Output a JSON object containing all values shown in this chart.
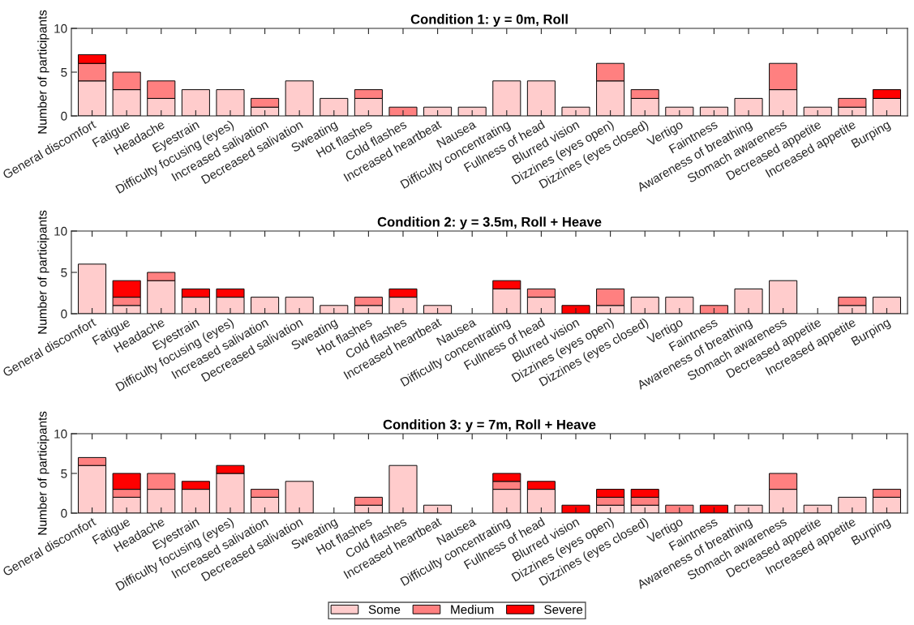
{
  "chart_data": [
    {
      "type": "bar",
      "title": "Condition 1: y = 0m, Roll",
      "ylabel": "Number of participants",
      "stacked": true,
      "legend": "bottom",
      "grid": false,
      "ylim": [
        0,
        10
      ],
      "yticks": [
        0,
        5,
        10
      ],
      "categories": [
        "General discomfort",
        "Fatigue",
        "Headache",
        "Eyestrain",
        "Difficulty focusing (eyes)",
        "Increased salivation",
        "Decreased salivation",
        "Sweating",
        "Hot flashes",
        "Cold flashes",
        "Increased heartbeat",
        "Nausea",
        "Difficulty concentrating",
        "Fullness of head",
        "Blurred vision",
        "Dizzines (eyes open)",
        "Dizzines (eyes closed)",
        "Vertigo",
        "Faintness",
        "Awareness of breathing",
        "Stomach awareness",
        "Decreased appetite",
        "Increased appetite",
        "Burping"
      ],
      "series": [
        {
          "name": "Some",
          "color": "#ffcccc",
          "values": [
            4,
            3,
            2,
            3,
            3,
            1,
            4,
            2,
            2,
            0,
            1,
            1,
            4,
            4,
            1,
            4,
            2,
            1,
            1,
            2,
            3,
            1,
            1,
            2
          ]
        },
        {
          "name": "Medium",
          "color": "#ff8080",
          "values": [
            2,
            2,
            2,
            0,
            0,
            1,
            0,
            0,
            1,
            1,
            0,
            0,
            0,
            0,
            0,
            2,
            1,
            0,
            0,
            0,
            3,
            0,
            1,
            0
          ]
        },
        {
          "name": "Severe",
          "color": "#ff0000",
          "values": [
            1,
            0,
            0,
            0,
            0,
            0,
            0,
            0,
            0,
            0,
            0,
            0,
            0,
            0,
            0,
            0,
            0,
            0,
            0,
            0,
            0,
            0,
            0,
            1
          ]
        }
      ]
    },
    {
      "type": "bar",
      "title": "Condition 2: y = 3.5m, Roll + Heave",
      "ylabel": "Number of participants",
      "stacked": true,
      "grid": false,
      "ylim": [
        0,
        10
      ],
      "yticks": [
        0,
        5,
        10
      ],
      "categories": [
        "General discomfort",
        "Fatigue",
        "Headache",
        "Eyestrain",
        "Difficulty focusing (eyes)",
        "Increased salivation",
        "Decreased salivation",
        "Sweating",
        "Hot flashes",
        "Cold flashes",
        "Increased heartbeat",
        "Nausea",
        "Difficulty concentrating",
        "Fullness of head",
        "Blurred vision",
        "Dizzines (eyes open)",
        "Dizzines (eyes closed)",
        "Vertigo",
        "Faintness",
        "Awareness of breathing",
        "Stomach awareness",
        "Decreased appetite",
        "Increased appetite",
        "Burping"
      ],
      "series": [
        {
          "color": "#ffcccc",
          "values": [
            6,
            1,
            4,
            2,
            2,
            2,
            2,
            1,
            1,
            2,
            1,
            0,
            3,
            2,
            0,
            1,
            2,
            2,
            0,
            3,
            4,
            0,
            1,
            2
          ]
        },
        {
          "color": "#ff8080",
          "values": [
            0,
            1,
            1,
            0,
            0,
            0,
            0,
            0,
            1,
            0,
            0,
            0,
            0,
            1,
            0,
            2,
            0,
            0,
            1,
            0,
            0,
            0,
            1,
            0
          ]
        },
        {
          "color": "#ff0000",
          "values": [
            0,
            2,
            0,
            1,
            1,
            0,
            0,
            0,
            0,
            1,
            0,
            0,
            1,
            0,
            1,
            0,
            0,
            0,
            0,
            0,
            0,
            0,
            0,
            0
          ]
        }
      ]
    },
    {
      "type": "bar",
      "title": "Condition 3: y = 7m, Roll + Heave",
      "ylabel": "Number of participants",
      "stacked": true,
      "grid": false,
      "ylim": [
        0,
        10
      ],
      "yticks": [
        0,
        5,
        10
      ],
      "categories": [
        "General discomfort",
        "Fatigue",
        "Headache",
        "Eyestrain",
        "Difficulty focusing (eyes)",
        "Increased salivation",
        "Decreased salivation",
        "Sweating",
        "Hot flashes",
        "Cold flashes",
        "Increased heartbeat",
        "Nausea",
        "Difficulty concentrating",
        "Fullness of head",
        "Blurred vision",
        "Dizzines (eyes open)",
        "Dizzines (eyes closed)",
        "Vertigo",
        "Faintness",
        "Awareness of breathing",
        "Stomach awareness",
        "Decreased appetite",
        "Increased appetite",
        "Burping"
      ],
      "series": [
        {
          "color": "#ffcccc",
          "values": [
            6,
            2,
            3,
            3,
            5,
            2,
            4,
            0,
            1,
            6,
            1,
            0,
            3,
            3,
            0,
            1,
            1,
            0,
            0,
            1,
            3,
            1,
            2,
            2
          ]
        },
        {
          "color": "#ff8080",
          "values": [
            1,
            1,
            2,
            0,
            0,
            1,
            0,
            0,
            1,
            0,
            0,
            0,
            1,
            0,
            0,
            1,
            1,
            1,
            0,
            0,
            2,
            0,
            0,
            1
          ]
        },
        {
          "color": "#ff0000",
          "values": [
            0,
            2,
            0,
            1,
            1,
            0,
            0,
            0,
            0,
            0,
            0,
            0,
            1,
            1,
            1,
            1,
            1,
            0,
            1,
            0,
            0,
            0,
            0,
            0
          ]
        }
      ]
    }
  ]
}
